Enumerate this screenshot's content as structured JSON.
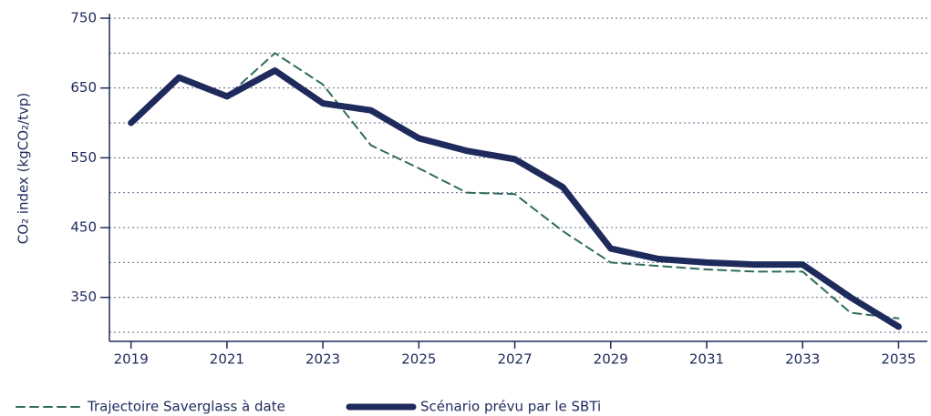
{
  "chart_data": {
    "type": "line",
    "ylabel": "CO₂ index (kgCO₂/tvp)",
    "x": [
      2019,
      2020,
      2021,
      2022,
      2023,
      2024,
      2025,
      2026,
      2027,
      2028,
      2029,
      2030,
      2031,
      2032,
      2033,
      2034,
      2035
    ],
    "series": [
      {
        "name": "Trajectoire Saverglass à date",
        "color": "#2e6b5a",
        "style": "dashed",
        "values": [
          600,
          665,
          638,
          700,
          655,
          568,
          535,
          500,
          498,
          445,
          400,
          395,
          390,
          387,
          387,
          328,
          320
        ]
      },
      {
        "name": "Scénario prévu par le SBTi",
        "color": "#1f2a5c",
        "style": "solid",
        "values": [
          600,
          665,
          638,
          675,
          628,
          618,
          578,
          560,
          548,
          508,
          420,
          405,
          400,
          397,
          397,
          350,
          308
        ]
      }
    ],
    "xlim": [
      2018.55,
      2035.6
    ],
    "xticks": [
      2019,
      2021,
      2023,
      2025,
      2027,
      2029,
      2031,
      2033,
      2035
    ],
    "ylim": [
      287,
      750
    ],
    "yticks": [
      350,
      450,
      550,
      650,
      750
    ],
    "ygrid": [
      300,
      350,
      400,
      450,
      500,
      550,
      600,
      650,
      700,
      750
    ],
    "grid": true,
    "legend": "bottom"
  }
}
